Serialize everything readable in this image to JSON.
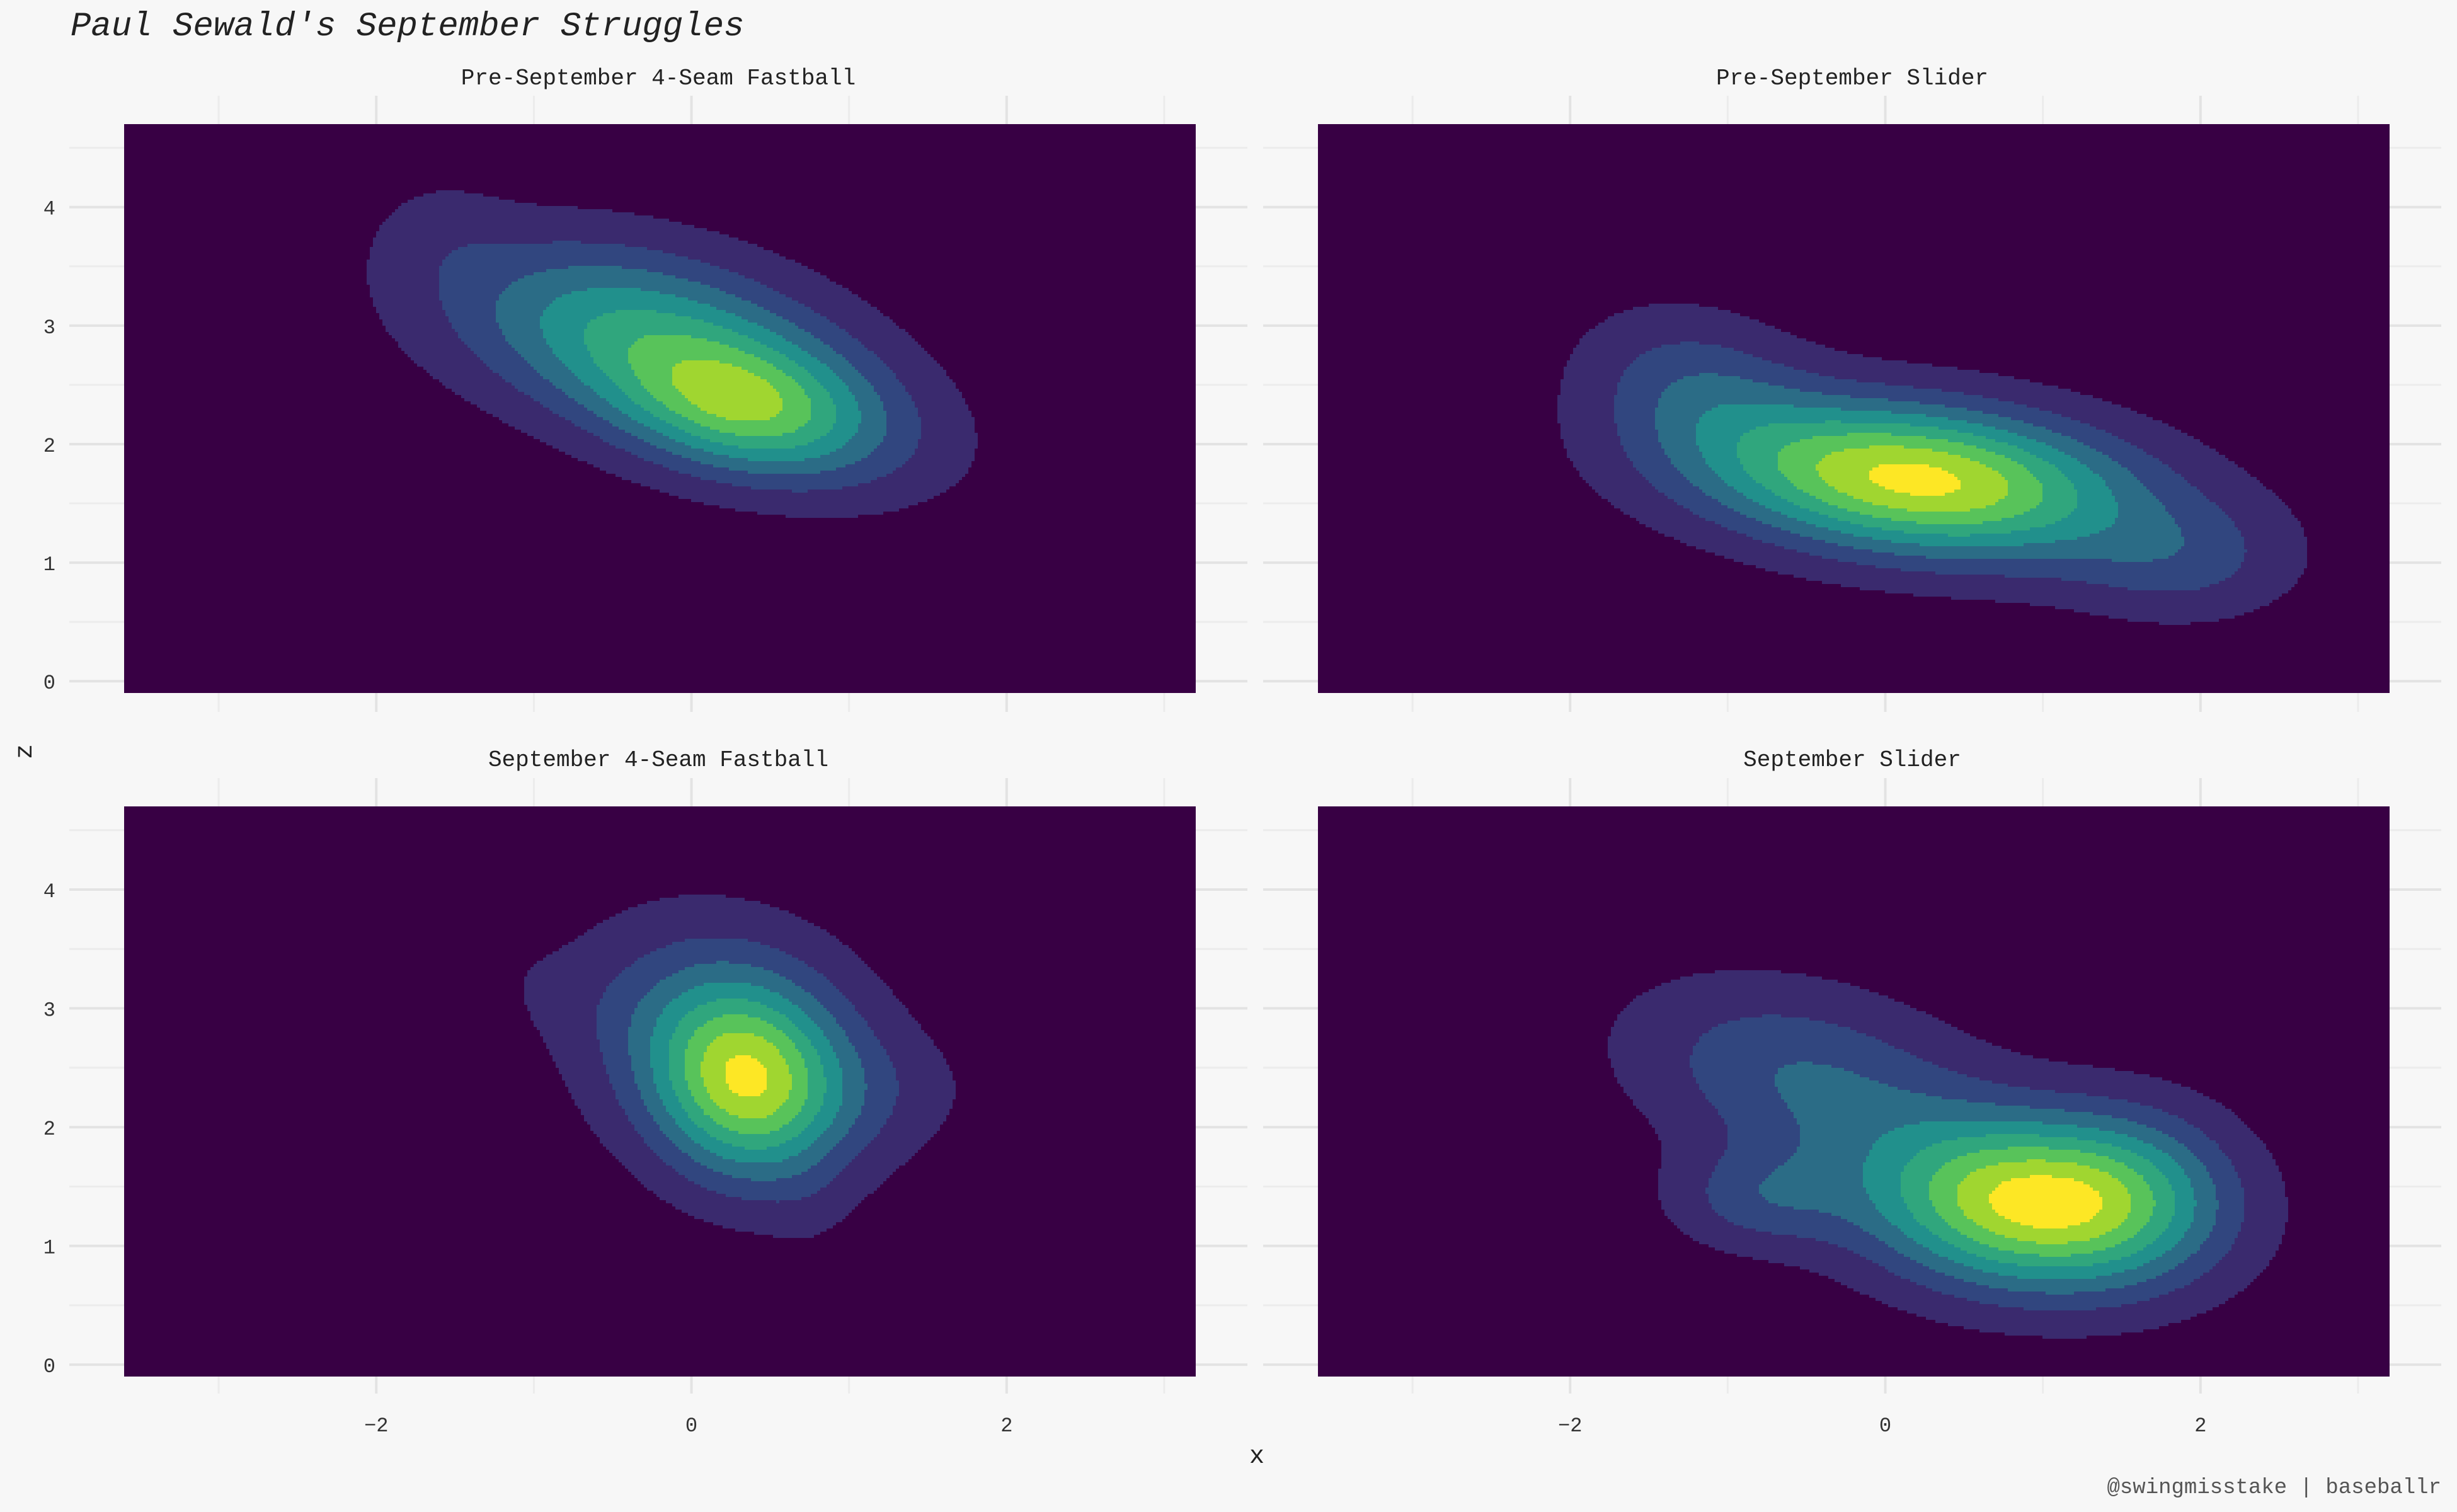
{
  "title": "Paul Sewald's September Struggles",
  "caption": "@swingmisstake | baseballr",
  "colors": {
    "background": "#f7f7f7",
    "panel_fill": "#380044",
    "grid_major": "#e3e3e3",
    "grid_minor": "#ececec",
    "levels": [
      "#3a2a6e",
      "#31467f",
      "#2b6c86",
      "#21908c",
      "#30a67d",
      "#58c35a",
      "#a0d630",
      "#fde725"
    ]
  },
  "chart_data": {
    "type": "density2d",
    "facet_layout": "2x2",
    "xlabel": "x",
    "ylabel": "z",
    "xlim": [
      -3.6,
      3.2
    ],
    "ylim": [
      -0.1,
      4.7
    ],
    "x_ticks": [
      -2,
      0,
      2
    ],
    "y_ticks": [
      0,
      1,
      2,
      3,
      4
    ],
    "grid": true,
    "legend": "none",
    "panels": [
      {
        "title": "Pre-September 4-Seam Fastball",
        "spread": 0.93,
        "components": [
          {
            "cx": -0.3,
            "cy": 2.9,
            "sx": 0.85,
            "sy": 0.55,
            "rho": -0.35,
            "w": 1.0
          },
          {
            "cx": 0.35,
            "cy": 2.3,
            "sx": 0.55,
            "sy": 0.38,
            "rho": -0.2,
            "w": 0.75
          },
          {
            "cx": 0.7,
            "cy": 2.1,
            "sx": 0.7,
            "sy": 0.45,
            "rho": -0.3,
            "w": 0.3
          },
          {
            "cx": -1.6,
            "cy": 3.8,
            "sx": 0.3,
            "sy": 0.35,
            "rho": 0.0,
            "w": 0.12
          }
        ]
      },
      {
        "title": "Pre-September Slider",
        "spread": 1.0,
        "components": [
          {
            "cx": 0.2,
            "cy": 1.7,
            "sx": 0.95,
            "sy": 0.45,
            "rho": -0.25,
            "w": 1.0
          },
          {
            "cx": -1.2,
            "cy": 2.5,
            "sx": 0.5,
            "sy": 0.45,
            "rho": -0.2,
            "w": 0.25
          },
          {
            "cx": 1.9,
            "cy": 1.0,
            "sx": 0.5,
            "sy": 0.35,
            "rho": 0.0,
            "w": 0.2
          }
        ]
      },
      {
        "title": "September 4-Seam Fastball",
        "spread": 1.0,
        "components": [
          {
            "cx": 0.35,
            "cy": 2.35,
            "sx": 0.4,
            "sy": 0.55,
            "rho": -0.1,
            "w": 1.0
          },
          {
            "cx": 0.25,
            "cy": 2.7,
            "sx": 0.65,
            "sy": 0.7,
            "rho": -0.2,
            "w": 0.55
          },
          {
            "cx": 1.2,
            "cy": 2.3,
            "sx": 0.45,
            "sy": 0.35,
            "rho": 0.0,
            "w": 0.12
          },
          {
            "cx": -1.5,
            "cy": 4.15,
            "sx": 0.28,
            "sy": 0.22,
            "rho": 0.0,
            "w": 0.06
          },
          {
            "cx": -1.7,
            "cy": 3.55,
            "sx": 0.45,
            "sy": 0.22,
            "rho": -0.4,
            "w": 0.05
          },
          {
            "cx": -0.9,
            "cy": 3.1,
            "sx": 0.5,
            "sy": 0.3,
            "rho": -0.3,
            "w": 0.05
          },
          {
            "cx": 0.75,
            "cy": 1.3,
            "sx": 0.18,
            "sy": 0.3,
            "rho": 0.0,
            "w": 0.05
          }
        ]
      },
      {
        "title": "September Slider",
        "spread": 1.05,
        "components": [
          {
            "cx": 0.9,
            "cy": 1.35,
            "sx": 0.7,
            "sy": 0.5,
            "rho": -0.1,
            "w": 1.0
          },
          {
            "cx": -0.5,
            "cy": 2.4,
            "sx": 0.75,
            "sy": 0.55,
            "rho": -0.3,
            "w": 0.35
          },
          {
            "cx": -0.8,
            "cy": 1.4,
            "sx": 0.4,
            "sy": 0.3,
            "rho": 0.0,
            "w": 0.25
          },
          {
            "cx": 1.6,
            "cy": 1.5,
            "sx": 0.45,
            "sy": 0.5,
            "rho": 0.0,
            "w": 0.25
          }
        ]
      }
    ]
  }
}
